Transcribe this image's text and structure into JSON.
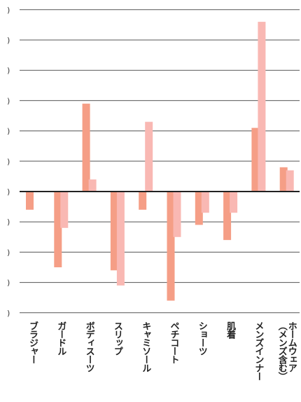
{
  "chart_data": {
    "type": "bar",
    "categories": [
      "ブラジャー",
      "ガードル",
      "ボディスーツ",
      "スリップ",
      "キャミソール",
      "ペチコート",
      "ショーツ",
      "肌着",
      "メンズインナー",
      "ホームウェア\n（メンズ含む）"
    ],
    "series": [
      {
        "values": [
          -0.6,
          -2.5,
          2.9,
          -2.6,
          -0.6,
          -3.6,
          -1.1,
          -1.6,
          2.1,
          0.8
        ],
        "color": "#f59e86"
      },
      {
        "values": [
          0.0,
          -1.2,
          0.4,
          -3.1,
          2.3,
          -1.5,
          -0.7,
          -0.7,
          5.6,
          0.7
        ],
        "color": "#f9b8b3"
      }
    ],
    "yticks": [
      ")",
      ")",
      ")",
      ")",
      ")",
      ")",
      ")",
      ")",
      ")",
      ")",
      ")"
    ],
    "ylim": [
      -4,
      6
    ],
    "grid": true
  }
}
